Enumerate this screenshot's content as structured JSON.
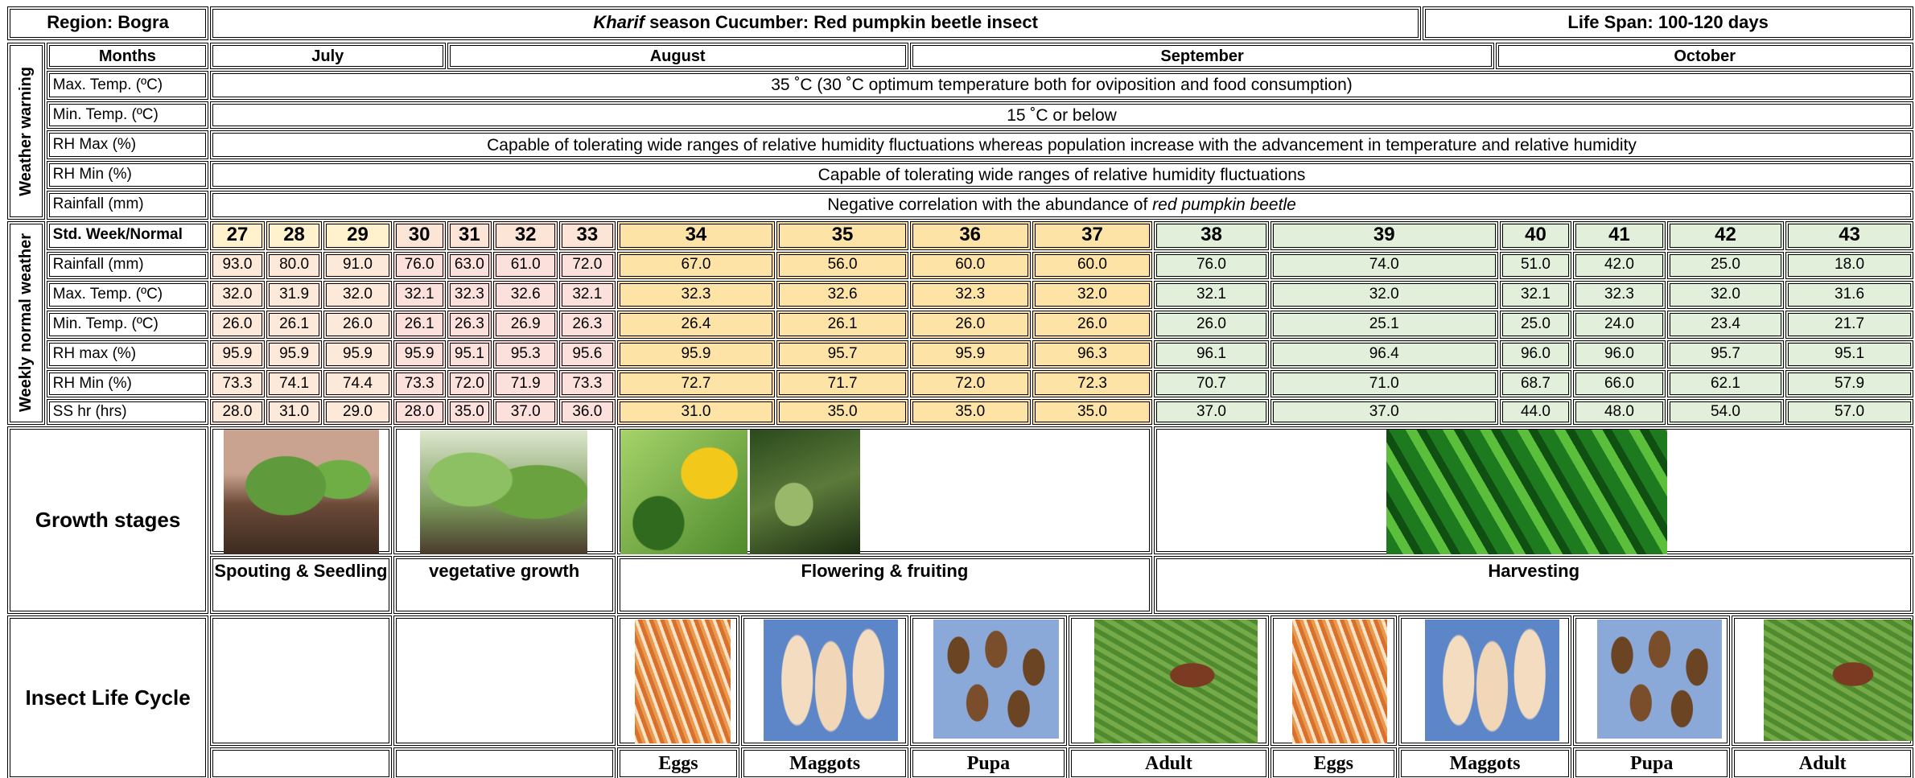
{
  "header": {
    "region": "Region: Bogra",
    "title": {
      "emphasis": "Kharif",
      "text": "season Cucumber: Red pumpkin beetle insect"
    },
    "life_span": "Life Span: 100-120 days"
  },
  "weather_warning": {
    "label": "Weather warning",
    "months_label": "Months",
    "months": [
      "July",
      "August",
      "September",
      "October"
    ],
    "rows": [
      {
        "label": "Max. Temp. (ºC)",
        "text": "35 ˚C (30 ˚C optimum temperature both for oviposition and food consumption)"
      },
      {
        "label": "Min. Temp. (ºC)",
        "text": "15 ˚C or below"
      },
      {
        "label": "RH Max (%)",
        "text": "Capable of tolerating wide ranges of relative humidity fluctuations whereas population increase with the advancement in temperature and relative humidity"
      },
      {
        "label": "RH Min (%)",
        "text": "Capable of tolerating wide ranges of relative humidity fluctuations"
      },
      {
        "label": "Rainfall (mm)",
        "text": "Negative correlation with the abundance of",
        "emphasis": "red pumpkin beetle"
      }
    ]
  },
  "weekly_weather": {
    "label": "Weekly normal weather",
    "week_label": "Std. Week/Normal",
    "weeks": [
      27,
      28,
      29,
      30,
      31,
      32,
      33,
      34,
      35,
      36,
      37,
      38,
      39,
      40,
      41,
      42,
      43
    ],
    "rows": [
      {
        "label": "Rainfall (mm)",
        "values": [
          "93.0",
          "80.0",
          "91.0",
          "76.0",
          "63.0",
          "61.0",
          "72.0",
          "67.0",
          "56.0",
          "60.0",
          "60.0",
          "76.0",
          "74.0",
          "51.0",
          "42.0",
          "25.0",
          "18.0"
        ]
      },
      {
        "label": "Max. Temp. (ºC)",
        "values": [
          "32.0",
          "31.9",
          "32.0",
          "32.1",
          "32.3",
          "32.6",
          "32.1",
          "32.3",
          "32.6",
          "32.3",
          "32.0",
          "32.1",
          "32.0",
          "32.1",
          "32.3",
          "32.0",
          "31.6"
        ]
      },
      {
        "label": "Min. Temp. (ºC)",
        "values": [
          "26.0",
          "26.1",
          "26.0",
          "26.1",
          "26.3",
          "26.9",
          "26.3",
          "26.4",
          "26.1",
          "26.0",
          "26.0",
          "26.0",
          "25.1",
          "25.0",
          "24.0",
          "23.4",
          "21.7"
        ]
      },
      {
        "label": "RH max (%)",
        "values": [
          "95.9",
          "95.9",
          "95.9",
          "95.9",
          "95.1",
          "95.3",
          "95.6",
          "95.9",
          "95.7",
          "95.9",
          "96.3",
          "96.1",
          "96.4",
          "96.0",
          "96.0",
          "95.7",
          "95.1"
        ]
      },
      {
        "label": "RH Min (%)",
        "values": [
          "73.3",
          "74.1",
          "74.4",
          "73.3",
          "72.0",
          "71.9",
          "73.3",
          "72.7",
          "71.7",
          "72.0",
          "72.3",
          "70.7",
          "71.0",
          "68.7",
          "66.0",
          "62.1",
          "57.9"
        ]
      },
      {
        "label": "SS hr (hrs)",
        "values": [
          "28.0",
          "31.0",
          "29.0",
          "28.0",
          "35.0",
          "37.0",
          "36.0",
          "31.0",
          "35.0",
          "35.0",
          "35.0",
          "37.0",
          "37.0",
          "44.0",
          "48.0",
          "54.0",
          "57.0"
        ]
      }
    ]
  },
  "growth_stages": {
    "label": "Growth stages",
    "stages": [
      "Spouting & Seedling",
      "vegetative growth",
      "Flowering & fruiting",
      "Harvesting"
    ]
  },
  "insect_life_cycle": {
    "label": "Insect Life Cycle",
    "stages": [
      "Eggs",
      "Maggots",
      "Pupa",
      "Adult",
      "Eggs",
      "Maggots",
      "Pupa",
      "Adult"
    ]
  }
}
